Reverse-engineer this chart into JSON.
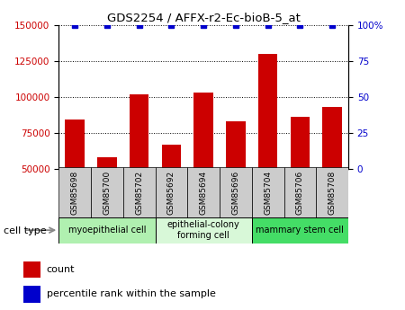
{
  "title": "GDS2254 / AFFX-r2-Ec-bioB-5_at",
  "samples": [
    "GSM85698",
    "GSM85700",
    "GSM85702",
    "GSM85692",
    "GSM85694",
    "GSM85696",
    "GSM85704",
    "GSM85706",
    "GSM85708"
  ],
  "counts": [
    84000,
    58000,
    102000,
    67000,
    103000,
    83000,
    130000,
    86000,
    93000
  ],
  "percentile_ranks": [
    100,
    100,
    100,
    100,
    100,
    100,
    100,
    100,
    100
  ],
  "cell_types": [
    {
      "label": "myoepithelial cell",
      "start": 0,
      "end": 3,
      "color": "#b0f0b0"
    },
    {
      "label": "epithelial-colony\nforming cell",
      "start": 3,
      "end": 6,
      "color": "#d8f8d8"
    },
    {
      "label": "mammary stem cell",
      "start": 6,
      "end": 9,
      "color": "#44dd66"
    }
  ],
  "ylim_left": [
    50000,
    150000
  ],
  "ylim_right": [
    0,
    100
  ],
  "yticks_left": [
    50000,
    75000,
    100000,
    125000,
    150000
  ],
  "yticks_right": [
    0,
    25,
    50,
    75,
    100
  ],
  "bar_color": "#CC0000",
  "dot_color": "#0000CC",
  "bar_width": 0.6,
  "label_box_color": "#cccccc",
  "bg_color": "#ffffff"
}
